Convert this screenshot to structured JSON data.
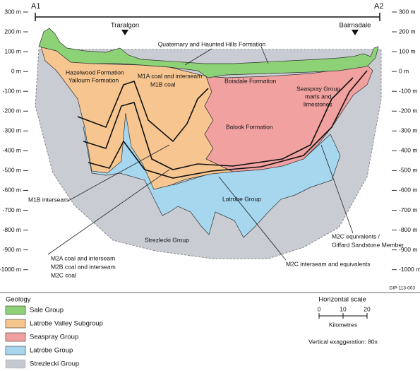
{
  "header": {
    "left_end": "A1",
    "right_end": "A2",
    "towns": [
      "Traralgon",
      "Bairnsdale"
    ]
  },
  "depth_labels": [
    "300 m",
    "200 m",
    "100 m",
    "0 m",
    "-100 m",
    "-200 m",
    "-300 m",
    "-400 m",
    "-500 m",
    "-600 m",
    "-700 m",
    "-800 m",
    "-900 m",
    "-1000 m"
  ],
  "section_labels": {
    "quaternary": "Quaternary and Haunted Hills Formation",
    "hazelwood": "Hazelwood Formation",
    "yallourn": "Yallourn Formation",
    "m1a": "M1A coal and interseam",
    "m1b_coal": "M1B coal",
    "boisdale": "Boisdale Formation",
    "seaspray": [
      "Seaspray Group",
      "marls and",
      "limestones"
    ],
    "balook": "Balook Formation",
    "latrobe": "Latrobe Group",
    "strezlecki": "Strezlecki Group",
    "m1b_interseam": "M1B interseam",
    "m2": [
      "M2A coal and interseam",
      "M2B coal and interseam",
      "M2C coal"
    ],
    "m2c_interseam": "M2C interseam and equivalents",
    "m2c_equivalents": [
      "M2C equivalents /",
      "Giffard Sandstone Member"
    ]
  },
  "figure_id": "GIP-113-003",
  "legend": {
    "title": "Geology",
    "items": [
      "Sale Group",
      "Latrobe Valley Subgroup",
      "Seaspray Group",
      "Latrobe Group",
      "Strezlecki Group"
    ]
  },
  "scale": {
    "title": "Horizontal scale",
    "ticks": [
      "0",
      "10",
      "20"
    ],
    "unit": "Kilometres",
    "note": "Vertical exaggeration: 80x"
  }
}
